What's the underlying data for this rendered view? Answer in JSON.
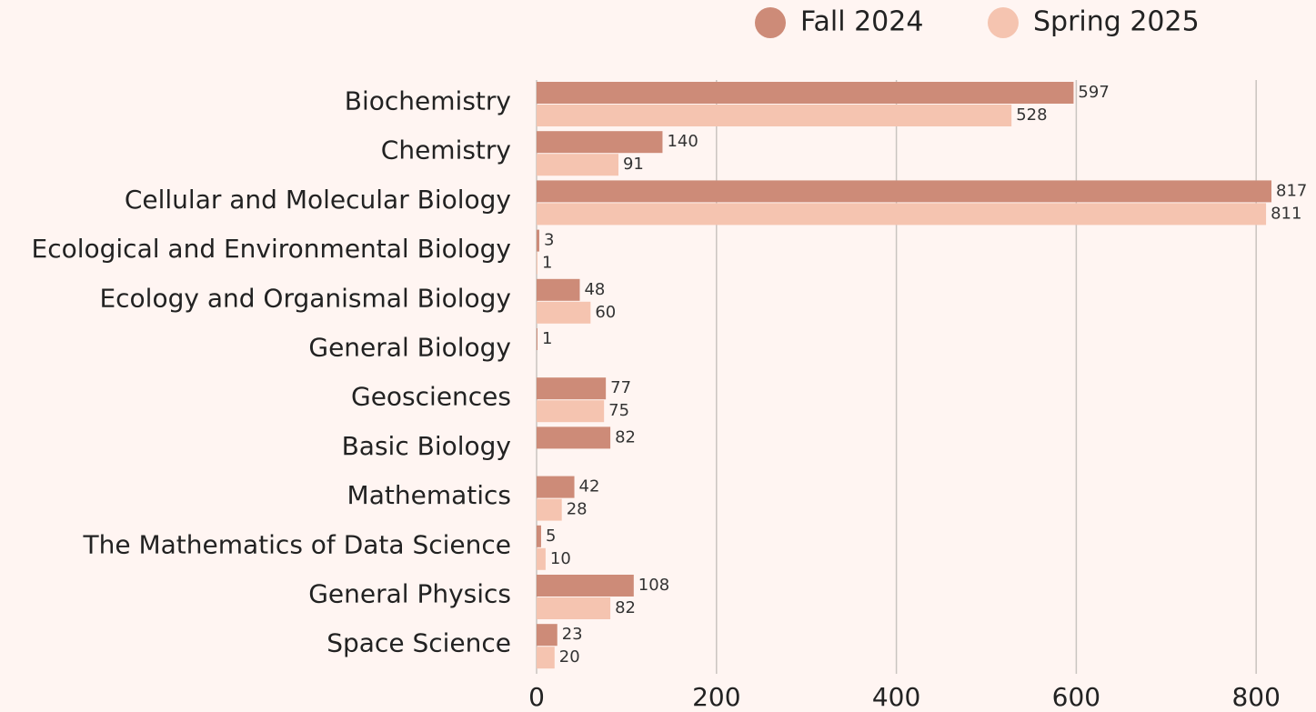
{
  "chart_data": {
    "type": "bar",
    "orientation": "horizontal",
    "categories": [
      "Biochemistry",
      "Chemistry",
      "Cellular and Molecular Biology",
      "Ecological and Environmental Biology",
      "Ecology and Organismal Biology",
      "General Biology",
      "Geosciences",
      "Basic Biology",
      "Mathematics",
      "The Mathematics of Data Science",
      "General Physics",
      "Space Science"
    ],
    "series": [
      {
        "name": "Fall 2024",
        "color": "#cd8b78",
        "values": [
          597,
          140,
          817,
          3,
          48,
          1,
          77,
          82,
          42,
          5,
          108,
          23
        ]
      },
      {
        "name": "Spring 2025",
        "color": "#f5c4b0",
        "values": [
          528,
          91,
          811,
          1,
          60,
          null,
          75,
          null,
          28,
          10,
          82,
          20
        ]
      }
    ],
    "xlim": [
      0,
      860
    ],
    "xticks": [
      0,
      200,
      400,
      600,
      800
    ],
    "grid": true,
    "legend": "top"
  }
}
